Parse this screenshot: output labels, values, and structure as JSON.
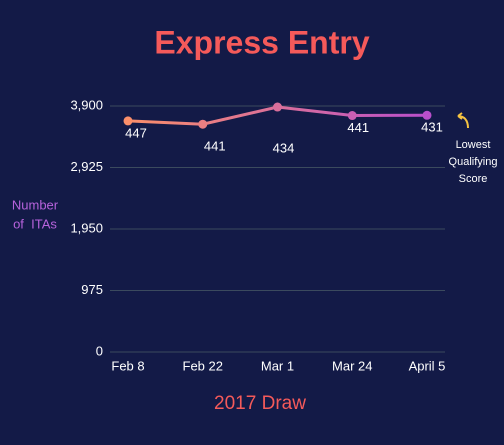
{
  "chart_data": {
    "type": "line",
    "title": "Express Entry",
    "y_label": [
      "Number",
      "of  ITAs"
    ],
    "x_label": "2017 Draw",
    "categories": [
      "Feb 8",
      "Feb 22",
      "Mar 1",
      "Mar 24",
      "April 5"
    ],
    "values": [
      3664,
      3611,
      3884,
      3749,
      3753
    ],
    "lowest_scores": [
      447,
      441,
      434,
      441,
      431
    ],
    "annotation": [
      "Lowest",
      "Qualifying",
      "Score"
    ],
    "gradient": [
      "#fb8f6a",
      "#b94fcb"
    ],
    "ylim": [
      0,
      3900
    ],
    "yticks": [
      0,
      975,
      {
        "value": 1950,
        "label": "1,950"
      },
      {
        "value": 2925,
        "label": "2,925"
      },
      {
        "value": 3900,
        "label": "3,900"
      }
    ],
    "grid": true
  }
}
